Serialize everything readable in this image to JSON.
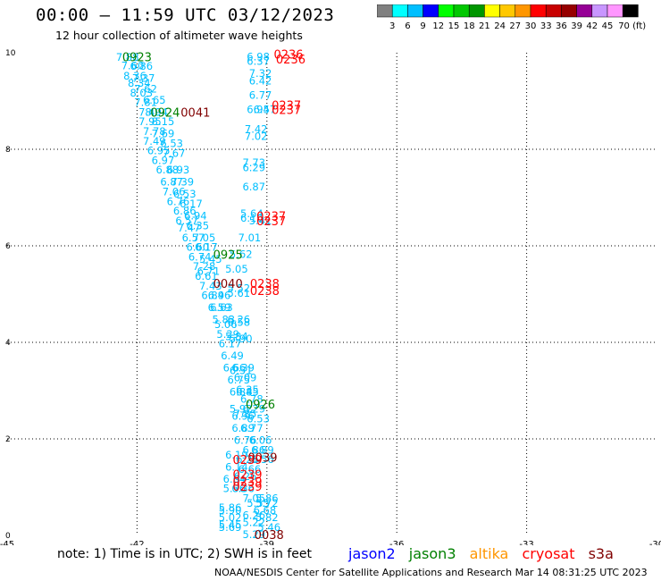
{
  "header": {
    "title": "00:00 – 11:59 UTC 03/12/2023",
    "subtitle": "12 hour collection of altimeter wave heights"
  },
  "colorbar": {
    "colors": [
      "#808080",
      "#00ffff",
      "#00bfff",
      "#0000ff",
      "#00ff00",
      "#00c800",
      "#009600",
      "#ffff00",
      "#ffc800",
      "#ff9600",
      "#ff0000",
      "#c80000",
      "#960000",
      "#960096",
      "#c896ff",
      "#ff96ff",
      "#000000"
    ],
    "labels": [
      "3",
      "6",
      "9",
      "12",
      "15",
      "18",
      "21",
      "24",
      "27",
      "30",
      "33",
      "36",
      "39",
      "42",
      "45",
      "70 (ft)"
    ]
  },
  "chart_data": {
    "type": "scatter",
    "xlim": [
      -45,
      -30
    ],
    "ylim": [
      0,
      10
    ],
    "xticks": [
      "-45",
      "-42",
      "-39",
      "-36",
      "-33",
      "-30"
    ],
    "yticks": [
      "0",
      "2",
      "4",
      "6",
      "8",
      "10"
    ],
    "grid": true,
    "swh_labels": [
      {
        "x": -42.22,
        "y": 9.91,
        "t": "7.88",
        "c": "#00bfff"
      },
      {
        "x": -42.1,
        "y": 9.73,
        "t": "7.60",
        "c": "#00bfff"
      },
      {
        "x": -41.9,
        "y": 9.72,
        "t": "6.86",
        "c": "#00bfff"
      },
      {
        "x": -42.05,
        "y": 9.52,
        "t": "8.36",
        "c": "#00bfff"
      },
      {
        "x": -41.85,
        "y": 9.47,
        "t": "7.37",
        "c": "#00bfff"
      },
      {
        "x": -41.95,
        "y": 9.37,
        "t": "8.34",
        "c": "#00bfff"
      },
      {
        "x": -41.9,
        "y": 9.17,
        "t": "8.03",
        "c": "#00bfff"
      },
      {
        "x": -41.8,
        "y": 9.25,
        "t": "7.62",
        "c": "#00bfff"
      },
      {
        "x": -41.8,
        "y": 8.97,
        "t": "7.81",
        "c": "#00bfff"
      },
      {
        "x": -41.6,
        "y": 9.02,
        "t": "6.65",
        "c": "#00bfff"
      },
      {
        "x": -41.7,
        "y": 8.77,
        "t": "7.49",
        "c": "#00bfff"
      },
      {
        "x": -41.55,
        "y": 8.77,
        "t": "8.04",
        "c": "#00bfff"
      },
      {
        "x": -41.7,
        "y": 8.57,
        "t": "7.95",
        "c": "#00bfff"
      },
      {
        "x": -41.4,
        "y": 8.57,
        "t": "8.15",
        "c": "#00bfff"
      },
      {
        "x": -41.6,
        "y": 8.37,
        "t": "7.78",
        "c": "#00bfff"
      },
      {
        "x": -41.4,
        "y": 8.32,
        "t": "7.69",
        "c": "#00bfff"
      },
      {
        "x": -41.6,
        "y": 8.17,
        "t": "7.49",
        "c": "#00bfff"
      },
      {
        "x": -41.2,
        "y": 8.12,
        "t": "6.53",
        "c": "#00bfff"
      },
      {
        "x": -41.5,
        "y": 7.97,
        "t": "6.95",
        "c": "#00bfff"
      },
      {
        "x": -41.15,
        "y": 7.92,
        "t": "7.67",
        "c": "#00bfff"
      },
      {
        "x": -41.4,
        "y": 7.77,
        "t": "6.97",
        "c": "#00bfff"
      },
      {
        "x": -41.3,
        "y": 7.57,
        "t": "6.88",
        "c": "#00bfff"
      },
      {
        "x": -41.05,
        "y": 7.57,
        "t": "6.93",
        "c": "#00bfff"
      },
      {
        "x": -41.2,
        "y": 7.32,
        "t": "6.87",
        "c": "#00bfff"
      },
      {
        "x": -40.95,
        "y": 7.32,
        "t": "7.39",
        "c": "#00bfff"
      },
      {
        "x": -41.15,
        "y": 7.12,
        "t": "7.06",
        "c": "#00bfff"
      },
      {
        "x": -40.9,
        "y": 7.07,
        "t": "6.53",
        "c": "#00bfff"
      },
      {
        "x": -41.05,
        "y": 6.92,
        "t": "6.76",
        "c": "#00bfff"
      },
      {
        "x": -40.75,
        "y": 6.87,
        "t": "6.17",
        "c": "#00bfff"
      },
      {
        "x": -40.9,
        "y": 6.72,
        "t": "6.86",
        "c": "#00bfff"
      },
      {
        "x": -40.65,
        "y": 6.62,
        "t": "6.94",
        "c": "#00bfff"
      },
      {
        "x": -40.85,
        "y": 6.52,
        "t": "6.57",
        "c": "#00bfff"
      },
      {
        "x": -40.6,
        "y": 6.42,
        "t": "6.35",
        "c": "#00bfff"
      },
      {
        "x": -40.8,
        "y": 6.37,
        "t": "7.47",
        "c": "#00bfff"
      },
      {
        "x": -40.7,
        "y": 6.17,
        "t": "6.57",
        "c": "#00bfff"
      },
      {
        "x": -40.45,
        "y": 6.17,
        "t": "7.05",
        "c": "#00bfff"
      },
      {
        "x": -40.6,
        "y": 5.97,
        "t": "6.60",
        "c": "#00bfff"
      },
      {
        "x": -40.4,
        "y": 5.97,
        "t": "6.17",
        "c": "#00bfff"
      },
      {
        "x": -40.55,
        "y": 5.77,
        "t": "6.74",
        "c": "#00bfff"
      },
      {
        "x": -40.3,
        "y": 5.72,
        "t": "5.45",
        "c": "#00bfff"
      },
      {
        "x": -40.45,
        "y": 5.57,
        "t": "7.28",
        "c": "#00bfff"
      },
      {
        "x": -40.35,
        "y": 5.47,
        "t": "6.71",
        "c": "#00bfff"
      },
      {
        "x": -40.4,
        "y": 5.37,
        "t": "6.61",
        "c": "#00bfff"
      },
      {
        "x": -40.3,
        "y": 5.17,
        "t": "7.43",
        "c": "#00bfff"
      },
      {
        "x": -40.25,
        "y": 4.97,
        "t": "6.89",
        "c": "#00bfff"
      },
      {
        "x": -40.1,
        "y": 4.97,
        "t": "6.46",
        "c": "#00bfff"
      },
      {
        "x": -40.1,
        "y": 4.72,
        "t": "6.59",
        "c": "#00bfff"
      },
      {
        "x": -40.05,
        "y": 4.72,
        "t": "6.63",
        "c": "#00bfff"
      },
      {
        "x": -40.0,
        "y": 4.47,
        "t": "5.83",
        "c": "#00bfff"
      },
      {
        "x": -39.65,
        "y": 4.47,
        "t": "6.26",
        "c": "#00bfff"
      },
      {
        "x": -39.95,
        "y": 4.37,
        "t": "5.06",
        "c": "#00bfff"
      },
      {
        "x": -39.65,
        "y": 4.42,
        "t": "6.58",
        "c": "#00bfff"
      },
      {
        "x": -39.9,
        "y": 4.17,
        "t": "5.29",
        "c": "#00bfff"
      },
      {
        "x": -39.7,
        "y": 4.12,
        "t": "5.84",
        "c": "#00bfff"
      },
      {
        "x": -39.85,
        "y": 3.97,
        "t": "6.17",
        "c": "#00bfff"
      },
      {
        "x": -39.6,
        "y": 4.07,
        "t": "5.90",
        "c": "#00bfff"
      },
      {
        "x": -39.8,
        "y": 3.72,
        "t": "6.49",
        "c": "#00bfff"
      },
      {
        "x": -39.75,
        "y": 3.47,
        "t": "6.66",
        "c": "#00bfff"
      },
      {
        "x": -39.55,
        "y": 3.47,
        "t": "6.39",
        "c": "#00bfff"
      },
      {
        "x": -39.6,
        "y": 3.42,
        "t": "6.51",
        "c": "#00bfff"
      },
      {
        "x": -39.65,
        "y": 3.22,
        "t": "6.75",
        "c": "#00bfff"
      },
      {
        "x": -39.5,
        "y": 3.27,
        "t": "6.09",
        "c": "#00bfff"
      },
      {
        "x": -39.6,
        "y": 2.97,
        "t": "6.88",
        "c": "#00bfff"
      },
      {
        "x": -39.45,
        "y": 3.02,
        "t": "6.35",
        "c": "#00bfff"
      },
      {
        "x": -39.45,
        "y": 2.97,
        "t": "6.45",
        "c": "#00bfff"
      },
      {
        "x": -39.35,
        "y": 2.82,
        "t": "6.78",
        "c": "#00bfff"
      },
      {
        "x": -39.6,
        "y": 2.62,
        "t": "5.92",
        "c": "#00bfff"
      },
      {
        "x": -39.3,
        "y": 2.62,
        "t": "6.29",
        "c": "#00bfff"
      },
      {
        "x": -39.5,
        "y": 2.52,
        "t": "7.85",
        "c": "#00bfff"
      },
      {
        "x": -39.55,
        "y": 2.47,
        "t": "6.96",
        "c": "#00bfff"
      },
      {
        "x": -39.2,
        "y": 2.42,
        "t": "6.53",
        "c": "#00bfff"
      },
      {
        "x": -39.55,
        "y": 2.22,
        "t": "6.89",
        "c": "#00bfff"
      },
      {
        "x": -39.35,
        "y": 2.22,
        "t": "6.77",
        "c": "#00bfff"
      },
      {
        "x": -39.5,
        "y": 1.97,
        "t": "6.76",
        "c": "#00bfff"
      },
      {
        "x": -39.15,
        "y": 1.97,
        "t": "6.06",
        "c": "#00bfff"
      },
      {
        "x": -39.3,
        "y": 1.77,
        "t": "6.86",
        "c": "#00bfff"
      },
      {
        "x": -39.1,
        "y": 1.77,
        "t": "6.89",
        "c": "#00bfff"
      },
      {
        "x": -39.7,
        "y": 1.67,
        "t": "6.19",
        "c": "#00bfff"
      },
      {
        "x": -39.45,
        "y": 1.57,
        "t": "6.26",
        "c": "#00bfff"
      },
      {
        "x": -39.1,
        "y": 1.57,
        "t": "5.56",
        "c": "#00bfff"
      },
      {
        "x": -39.7,
        "y": 1.42,
        "t": "6.14",
        "c": "#00bfff"
      },
      {
        "x": -39.4,
        "y": 1.37,
        "t": "6.66",
        "c": "#00bfff"
      },
      {
        "x": -39.75,
        "y": 1.17,
        "t": "6.64",
        "c": "#00bfff"
      },
      {
        "x": -39.5,
        "y": 1.22,
        "t": "6.26",
        "c": "#00bfff"
      },
      {
        "x": -39.75,
        "y": 0.97,
        "t": "5.96",
        "c": "#00bfff"
      },
      {
        "x": -39.55,
        "y": 0.97,
        "t": "6.36",
        "c": "#00bfff"
      },
      {
        "x": -39.3,
        "y": 0.77,
        "t": "7.05",
        "c": "#00bfff"
      },
      {
        "x": -39.0,
        "y": 0.77,
        "t": "5.86",
        "c": "#00bfff"
      },
      {
        "x": -39.2,
        "y": 0.67,
        "t": "5.55",
        "c": "#00bfff"
      },
      {
        "x": -39.0,
        "y": 0.67,
        "t": "5.72",
        "c": "#00bfff"
      },
      {
        "x": -39.85,
        "y": 0.57,
        "t": "5.86",
        "c": "#00bfff"
      },
      {
        "x": -39.85,
        "y": 0.52,
        "t": "5.90",
        "c": "#00bfff"
      },
      {
        "x": -39.05,
        "y": 0.52,
        "t": "6.68",
        "c": "#00bfff"
      },
      {
        "x": -39.3,
        "y": 0.42,
        "t": "6.26",
        "c": "#00bfff"
      },
      {
        "x": -39.85,
        "y": 0.37,
        "t": "5.02",
        "c": "#00bfff"
      },
      {
        "x": -39.0,
        "y": 0.37,
        "t": "5.82",
        "c": "#00bfff"
      },
      {
        "x": -39.3,
        "y": 0.27,
        "t": "5.22",
        "c": "#00bfff"
      },
      {
        "x": -39.85,
        "y": 0.22,
        "t": "5.45",
        "c": "#00bfff"
      },
      {
        "x": -39.85,
        "y": 0.17,
        "t": "5.69",
        "c": "#00bfff"
      },
      {
        "x": -38.95,
        "y": 0.17,
        "t": "5.46",
        "c": "#00bfff"
      },
      {
        "x": -39.3,
        "y": 0.02,
        "t": "5.29",
        "c": "#00bfff"
      },
      {
        "x": -39.2,
        "y": 9.92,
        "t": "6.98",
        "c": "#00bfff"
      },
      {
        "x": -39.2,
        "y": 9.82,
        "t": "6.37",
        "c": "#00bfff"
      },
      {
        "x": -39.15,
        "y": 9.57,
        "t": "7.32",
        "c": "#00bfff"
      },
      {
        "x": -39.15,
        "y": 9.42,
        "t": "6.42",
        "c": "#00bfff"
      },
      {
        "x": -39.15,
        "y": 9.12,
        "t": "6.77",
        "c": "#00bfff"
      },
      {
        "x": -39.2,
        "y": 8.82,
        "t": "6.95",
        "c": "#00bfff"
      },
      {
        "x": -39.05,
        "y": 8.82,
        "t": "6.47",
        "c": "#00bfff"
      },
      {
        "x": -39.25,
        "y": 8.42,
        "t": "7.42",
        "c": "#00bfff"
      },
      {
        "x": -39.25,
        "y": 8.27,
        "t": "7.02",
        "c": "#00bfff"
      },
      {
        "x": -39.3,
        "y": 7.72,
        "t": "7.73",
        "c": "#00bfff"
      },
      {
        "x": -39.3,
        "y": 7.62,
        "t": "6.29",
        "c": "#00bfff"
      },
      {
        "x": -39.3,
        "y": 7.22,
        "t": "6.87",
        "c": "#00bfff"
      },
      {
        "x": -39.35,
        "y": 6.67,
        "t": "5.64",
        "c": "#00bfff"
      },
      {
        "x": -39.35,
        "y": 6.57,
        "t": "6.16",
        "c": "#00bfff"
      },
      {
        "x": -39.15,
        "y": 6.52,
        "t": "5.41",
        "c": "#00bfff"
      },
      {
        "x": -39.4,
        "y": 6.17,
        "t": "7.01",
        "c": "#00bfff"
      },
      {
        "x": -39.6,
        "y": 5.82,
        "t": "5.62",
        "c": "#00bfff"
      },
      {
        "x": -39.7,
        "y": 5.52,
        "t": "5.05",
        "c": "#00bfff"
      },
      {
        "x": -39.65,
        "y": 5.12,
        "t": "5.52",
        "c": "#00bfff"
      },
      {
        "x": -39.65,
        "y": 5.02,
        "t": "5.61",
        "c": "#00bfff"
      }
    ],
    "pass_labels": [
      {
        "x": -42.0,
        "y": 9.92,
        "t": "0923",
        "c": "#008000"
      },
      {
        "x": -41.35,
        "y": 8.77,
        "t": "0924",
        "c": "#008000"
      },
      {
        "x": -40.65,
        "y": 8.77,
        "t": "0041",
        "c": "#800000"
      },
      {
        "x": -39.9,
        "y": 5.82,
        "t": "0925",
        "c": "#008000"
      },
      {
        "x": -39.9,
        "y": 5.22,
        "t": "0040",
        "c": "#800000"
      },
      {
        "x": -39.15,
        "y": 2.72,
        "t": "0926",
        "c": "#008000"
      },
      {
        "x": -39.1,
        "y": 1.62,
        "t": "0039",
        "c": "#800000"
      },
      {
        "x": -38.95,
        "y": 0.02,
        "t": "0038",
        "c": "#800000"
      },
      {
        "x": -38.5,
        "y": 9.97,
        "t": "0236",
        "c": "#ff0000"
      },
      {
        "x": -38.45,
        "y": 9.87,
        "t": "0236",
        "c": "#ff0000"
      },
      {
        "x": -38.55,
        "y": 8.92,
        "t": "0237",
        "c": "#ff0000"
      },
      {
        "x": -38.55,
        "y": 8.82,
        "t": "0237",
        "c": "#ff0000"
      },
      {
        "x": -38.9,
        "y": 6.62,
        "t": "0237",
        "c": "#ff0000"
      },
      {
        "x": -38.9,
        "y": 6.52,
        "t": "0237",
        "c": "#ff0000"
      },
      {
        "x": -39.05,
        "y": 5.22,
        "t": "0238",
        "c": "#ff0000"
      },
      {
        "x": -39.05,
        "y": 5.07,
        "t": "0238",
        "c": "#ff0000"
      },
      {
        "x": -39.45,
        "y": 1.57,
        "t": "0239",
        "c": "#ff0000"
      },
      {
        "x": -39.45,
        "y": 1.27,
        "t": "0239",
        "c": "#ff0000"
      },
      {
        "x": -39.45,
        "y": 1.12,
        "t": "0239",
        "c": "#ff0000"
      },
      {
        "x": -39.45,
        "y": 1.02,
        "t": "0239",
        "c": "#ff0000"
      }
    ]
  },
  "footer_note": "note:  1) Time is in UTC; 2) SWH is in feet",
  "legend": [
    {
      "name": "jason2",
      "color": "#0000ff"
    },
    {
      "name": "jason3",
      "color": "#008000"
    },
    {
      "name": "altika",
      "color": "#ff9600"
    },
    {
      "name": "cryosat",
      "color": "#ff0000"
    },
    {
      "name": "s3a",
      "color": "#800000"
    }
  ],
  "credit": "NOAA/NESDIS Center for Satellite Applications and Research    Mar 14 08:31:25 UTC 2023"
}
